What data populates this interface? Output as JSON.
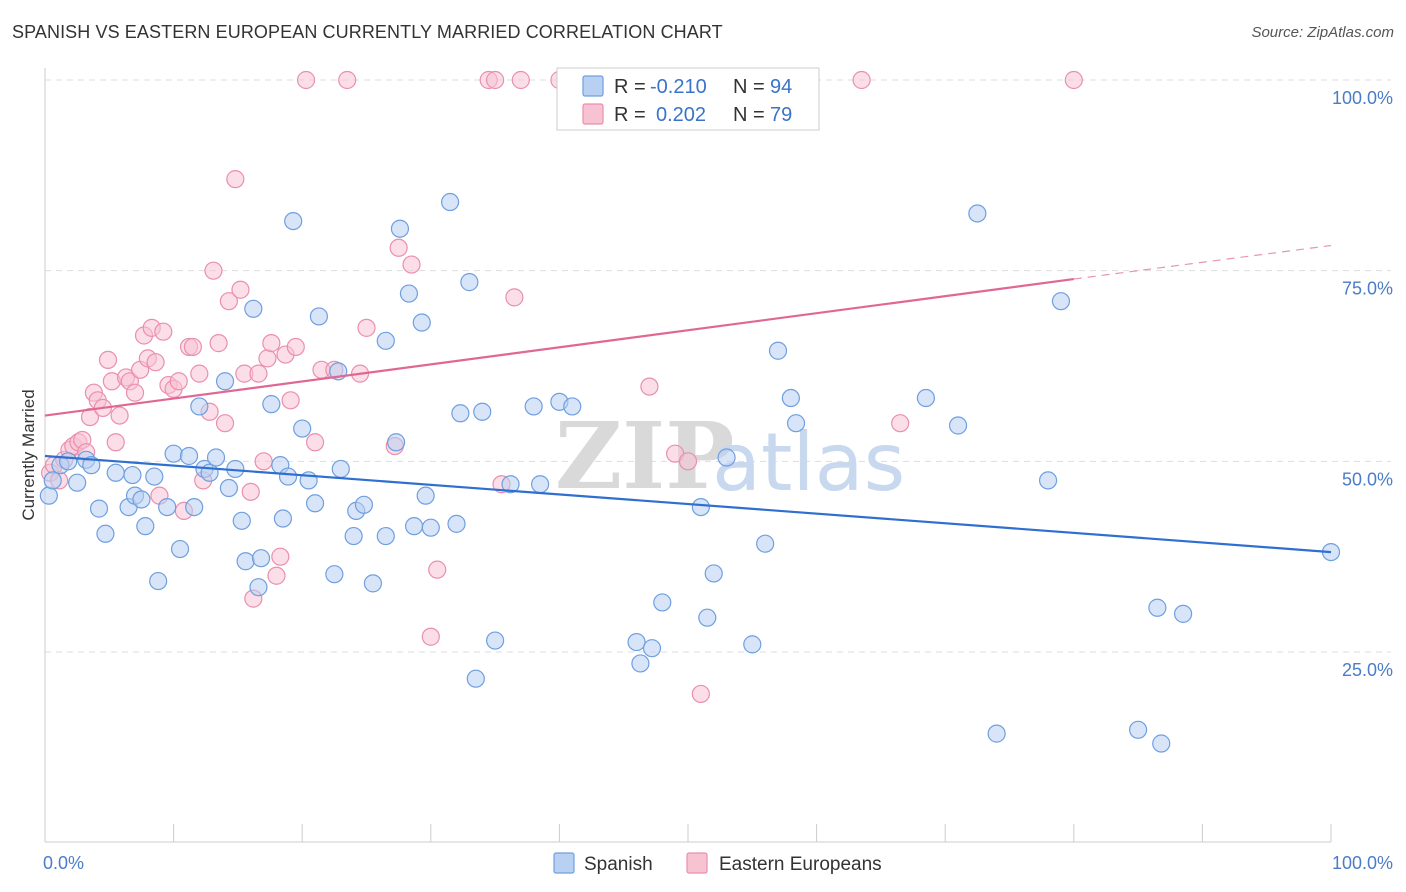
{
  "header": {
    "title": "SPANISH VS EASTERN EUROPEAN CURRENTLY MARRIED CORRELATION CHART",
    "source": "Source: ZipAtlas.com"
  },
  "watermark": {
    "zip": "ZIP",
    "atlas": "atlas"
  },
  "legend": {
    "rows": [
      {
        "r_label": "R =",
        "r_value": "-0.210",
        "n_label": "N =",
        "n_value": "94"
      },
      {
        "r_label": "R =",
        "r_value": "0.202",
        "n_label": "N =",
        "n_value": "79"
      }
    ]
  },
  "bottom_legend": {
    "items": [
      "Spanish",
      "Eastern Europeans"
    ]
  },
  "colors": {
    "spanish_fill": "#b8d0f2",
    "spanish_stroke": "#6f9fe0",
    "spanish_line": "#2f6fcf",
    "eastern_fill": "#f7c3d3",
    "eastern_stroke": "#ea8fae",
    "eastern_line": "#e06794",
    "tick_label": "#4a7cc8",
    "grid": "#dddddd"
  },
  "chart_data": {
    "type": "scatter",
    "title": "SPANISH VS EASTERN EUROPEAN CURRENTLY MARRIED CORRELATION CHART",
    "xlabel": "",
    "ylabel": "Currently Married",
    "xlim": [
      0,
      100
    ],
    "ylim": [
      0,
      105
    ],
    "x_tick_labels": [
      "0.0%",
      "100.0%"
    ],
    "y_ticks": [
      25,
      50,
      75,
      100
    ],
    "y_tick_labels": [
      "25.0%",
      "50.0%",
      "75.0%",
      "100.0%"
    ],
    "grid": true,
    "legend_position": "top-center",
    "series": [
      {
        "name": "Spanish",
        "r": -0.21,
        "n": 94,
        "trend": {
          "x0": 0,
          "y0": 50.7,
          "x1": 100,
          "y1": 38.1
        },
        "points": [
          [
            0.3,
            45.5
          ],
          [
            0.6,
            47.5
          ],
          [
            1.2,
            49.5
          ],
          [
            1.8,
            50.0
          ],
          [
            2.5,
            47.2
          ],
          [
            3.2,
            50.2
          ],
          [
            3.6,
            49.5
          ],
          [
            4.2,
            43.8
          ],
          [
            4.7,
            40.5
          ],
          [
            5.5,
            48.5
          ],
          [
            6.5,
            44.0
          ],
          [
            6.8,
            48.2
          ],
          [
            7.0,
            45.5
          ],
          [
            7.5,
            45.0
          ],
          [
            7.8,
            41.5
          ],
          [
            8.5,
            48.0
          ],
          [
            8.8,
            34.3
          ],
          [
            9.5,
            44.0
          ],
          [
            10.0,
            51.0
          ],
          [
            10.5,
            38.5
          ],
          [
            11.2,
            50.7
          ],
          [
            11.6,
            44.0
          ],
          [
            12.0,
            57.2
          ],
          [
            12.4,
            49.0
          ],
          [
            12.8,
            48.5
          ],
          [
            13.3,
            50.5
          ],
          [
            14.0,
            60.5
          ],
          [
            14.3,
            46.5
          ],
          [
            14.8,
            49.0
          ],
          [
            15.3,
            42.2
          ],
          [
            15.6,
            36.9
          ],
          [
            16.2,
            70.0
          ],
          [
            16.6,
            33.5
          ],
          [
            16.8,
            37.3
          ],
          [
            17.6,
            57.5
          ],
          [
            18.3,
            49.5
          ],
          [
            18.5,
            42.5
          ],
          [
            18.9,
            48.0
          ],
          [
            19.3,
            81.5
          ],
          [
            20.0,
            54.3
          ],
          [
            20.5,
            47.5
          ],
          [
            21.0,
            44.5
          ],
          [
            21.3,
            69.0
          ],
          [
            22.5,
            35.2
          ],
          [
            22.8,
            61.8
          ],
          [
            23.0,
            49.0
          ],
          [
            24.0,
            40.2
          ],
          [
            24.2,
            43.5
          ],
          [
            24.8,
            44.3
          ],
          [
            25.5,
            34.0
          ],
          [
            26.5,
            65.8
          ],
          [
            26.5,
            40.2
          ],
          [
            27.3,
            52.5
          ],
          [
            27.6,
            80.5
          ],
          [
            28.3,
            72.0
          ],
          [
            28.7,
            41.5
          ],
          [
            29.3,
            68.2
          ],
          [
            29.6,
            45.5
          ],
          [
            30.0,
            41.3
          ],
          [
            31.5,
            84.0
          ],
          [
            32.0,
            41.8
          ],
          [
            32.3,
            56.3
          ],
          [
            33.0,
            73.5
          ],
          [
            33.5,
            21.5
          ],
          [
            34.0,
            56.5
          ],
          [
            35.0,
            26.5
          ],
          [
            36.2,
            47.0
          ],
          [
            38.0,
            57.2
          ],
          [
            38.5,
            47.0
          ],
          [
            40.0,
            57.8
          ],
          [
            41.0,
            57.2
          ],
          [
            46.0,
            26.3
          ],
          [
            46.3,
            23.5
          ],
          [
            47.2,
            25.5
          ],
          [
            48.0,
            31.5
          ],
          [
            51.0,
            44.0
          ],
          [
            51.5,
            29.5
          ],
          [
            52.0,
            35.3
          ],
          [
            53.0,
            50.5
          ],
          [
            55.0,
            26.0
          ],
          [
            56.0,
            39.2
          ],
          [
            57.0,
            64.5
          ],
          [
            58.0,
            58.3
          ],
          [
            58.4,
            55.0
          ],
          [
            68.5,
            58.3
          ],
          [
            71.0,
            54.7
          ],
          [
            72.5,
            82.5
          ],
          [
            74.0,
            14.3
          ],
          [
            78.0,
            47.5
          ],
          [
            79.0,
            71.0
          ],
          [
            85.0,
            14.8
          ],
          [
            86.5,
            30.8
          ],
          [
            86.8,
            13.0
          ],
          [
            88.5,
            30.0
          ],
          [
            100.0,
            38.1
          ]
        ]
      },
      {
        "name": "Eastern Europeans",
        "r": 0.202,
        "n": 79,
        "trend": {
          "x0": 0,
          "y0": 56.0,
          "x1": 80,
          "y1": 73.9,
          "dash_to_x": 100,
          "dash_to_y": 78.3
        },
        "points": [
          [
            0.4,
            48.5
          ],
          [
            0.7,
            49.5
          ],
          [
            1.1,
            47.5
          ],
          [
            1.5,
            50.2
          ],
          [
            1.9,
            51.5
          ],
          [
            2.2,
            52.0
          ],
          [
            2.6,
            52.5
          ],
          [
            2.9,
            52.8
          ],
          [
            3.2,
            51.2
          ],
          [
            3.5,
            55.8
          ],
          [
            3.8,
            59.0
          ],
          [
            4.1,
            58.0
          ],
          [
            4.5,
            57.0
          ],
          [
            4.9,
            63.3
          ],
          [
            5.2,
            60.5
          ],
          [
            5.5,
            52.5
          ],
          [
            5.8,
            56.0
          ],
          [
            6.3,
            61.0
          ],
          [
            6.6,
            60.5
          ],
          [
            7.0,
            59.0
          ],
          [
            7.4,
            62.0
          ],
          [
            7.7,
            66.5
          ],
          [
            8.0,
            63.5
          ],
          [
            8.3,
            67.5
          ],
          [
            8.6,
            63.0
          ],
          [
            8.9,
            45.5
          ],
          [
            9.2,
            67.0
          ],
          [
            9.6,
            60.0
          ],
          [
            10.0,
            59.5
          ],
          [
            10.4,
            60.5
          ],
          [
            10.8,
            43.5
          ],
          [
            11.2,
            65.0
          ],
          [
            11.5,
            65.0
          ],
          [
            12.0,
            61.5
          ],
          [
            12.3,
            47.5
          ],
          [
            12.8,
            56.5
          ],
          [
            13.1,
            75.0
          ],
          [
            13.5,
            65.5
          ],
          [
            14.0,
            55.0
          ],
          [
            14.3,
            71.0
          ],
          [
            14.8,
            87.0
          ],
          [
            15.2,
            72.5
          ],
          [
            15.5,
            61.5
          ],
          [
            16.0,
            46.0
          ],
          [
            16.2,
            32.0
          ],
          [
            16.6,
            61.5
          ],
          [
            17.0,
            50.0
          ],
          [
            17.3,
            63.5
          ],
          [
            17.6,
            65.5
          ],
          [
            18.0,
            35.0
          ],
          [
            18.3,
            37.5
          ],
          [
            18.7,
            64.0
          ],
          [
            19.1,
            58.0
          ],
          [
            19.5,
            65.0
          ],
          [
            20.3,
            100
          ],
          [
            21.0,
            52.5
          ],
          [
            21.5,
            62.0
          ],
          [
            22.5,
            62.0
          ],
          [
            23.5,
            100
          ],
          [
            24.5,
            61.5
          ],
          [
            25.0,
            67.5
          ],
          [
            27.2,
            52.0
          ],
          [
            27.5,
            78.0
          ],
          [
            28.5,
            75.8
          ],
          [
            30.0,
            27.0
          ],
          [
            30.5,
            35.8
          ],
          [
            34.5,
            100
          ],
          [
            35.0,
            100
          ],
          [
            35.5,
            47.0
          ],
          [
            36.5,
            71.5
          ],
          [
            37.0,
            100
          ],
          [
            40.0,
            100
          ],
          [
            47.0,
            59.8
          ],
          [
            49.0,
            51.0
          ],
          [
            50.0,
            50.0
          ],
          [
            51.0,
            19.5
          ],
          [
            63.5,
            100
          ],
          [
            66.5,
            55.0
          ],
          [
            80.0,
            100
          ]
        ]
      }
    ]
  }
}
